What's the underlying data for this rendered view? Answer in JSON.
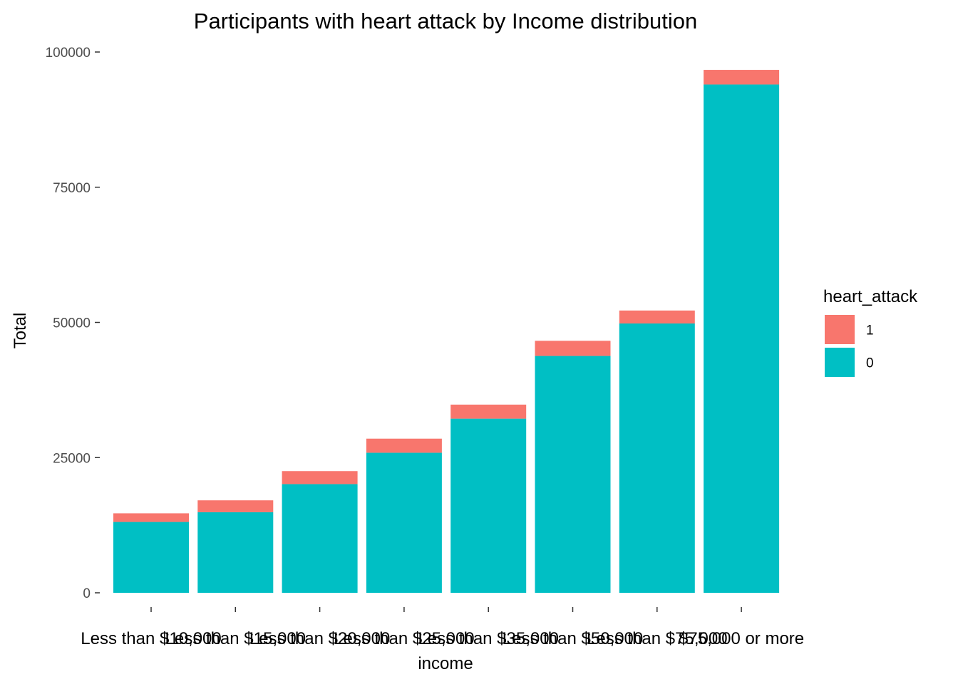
{
  "chart_data": {
    "type": "bar",
    "stacked": true,
    "title": "Participants with heart attack by Income distribution",
    "xlabel": "income",
    "ylabel": "Total",
    "ylim": [
      0,
      100000
    ],
    "y_ticks": [
      "0",
      "25000",
      "50000",
      "75000",
      "100000"
    ],
    "y_tick_values": [
      0,
      25000,
      50000,
      75000,
      100000
    ],
    "categories": [
      "Less than $10,000",
      "Less than $15,000",
      "Less than $20,000",
      "Less than $25,000",
      "Less than $35,000",
      "Less than $50,000",
      "Less than $75,000",
      "$75,000 or more"
    ],
    "series": [
      {
        "name": "0",
        "color": "#00BFC4",
        "values": [
          13100,
          14900,
          20100,
          25900,
          32200,
          43800,
          49800,
          94000
        ]
      },
      {
        "name": "1",
        "color": "#F8766D",
        "values": [
          1600,
          2200,
          2400,
          2600,
          2600,
          2800,
          2400,
          2700
        ]
      }
    ],
    "legend": {
      "title": "heart_attack",
      "position": "right",
      "entries": [
        {
          "label": "1",
          "color": "#F8766D"
        },
        {
          "label": "0",
          "color": "#00BFC4"
        }
      ]
    },
    "grid": false
  }
}
